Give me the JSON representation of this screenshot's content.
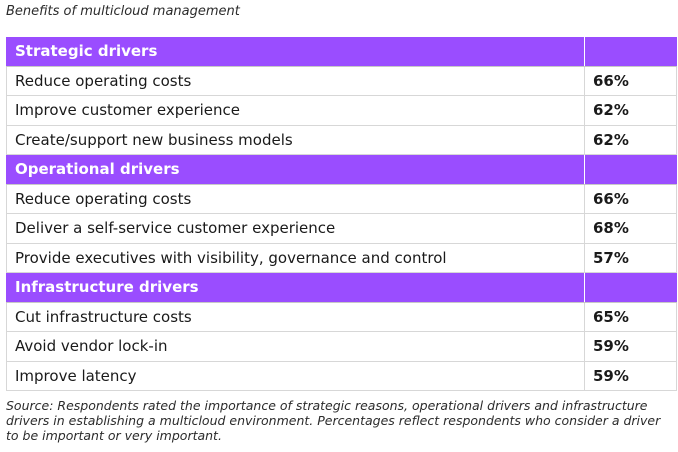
{
  "title": "Benefits of multicloud management",
  "sections": [
    {
      "heading": "Strategic drivers",
      "rows": [
        {
          "label": "Reduce operating costs",
          "value": "66%"
        },
        {
          "label": "Improve customer experience",
          "value": "62%"
        },
        {
          "label": "Create/support new business models",
          "value": "62%"
        }
      ]
    },
    {
      "heading": "Operational drivers",
      "rows": [
        {
          "label": "Reduce operating costs",
          "value": "66%"
        },
        {
          "label": "Deliver a self-service customer experience",
          "value": "68%"
        },
        {
          "label": "Provide executives with visibility, governance and control",
          "value": "57%"
        }
      ]
    },
    {
      "heading": "Infrastructure drivers",
      "rows": [
        {
          "label": "Cut infrastructure costs",
          "value": "65%"
        },
        {
          "label": "Avoid vendor lock-in",
          "value": "59%"
        },
        {
          "label": "Improve latency",
          "value": "59%"
        }
      ]
    }
  ],
  "source": "Source: Respondents rated the importance of strategic reasons, operational drivers and infrastructure drivers in establishing a multicloud environment. Percentages reflect respondents who consider a driver to be important or very important.",
  "colors": {
    "section_header_bg": "#9a4dff",
    "section_header_text": "#ffffff",
    "grid_line": "#d7d7d7"
  }
}
